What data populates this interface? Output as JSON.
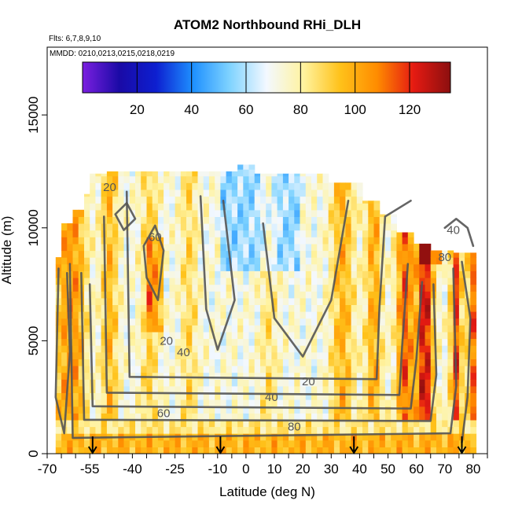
{
  "chart_data": {
    "type": "heatmap",
    "title": "ATOM2 Northbound RHi_DLH",
    "subtitle_lines": [
      "Flts: 6,7,8,9,10",
      "MMDD: 0210,0213,0215,0218,0219"
    ],
    "xlabel": "Latitude (deg N)",
    "ylabel": "Altitude (m)",
    "xlim": [
      -70,
      85
    ],
    "ylim": [
      0,
      18000
    ],
    "x_ticks": [
      {
        "value": -70,
        "label": "-70"
      },
      {
        "value": -55,
        "label": "-55"
      },
      {
        "value": -40,
        "label": "-40"
      },
      {
        "value": -25,
        "label": "-25"
      },
      {
        "value": -10,
        "label": "-10"
      },
      {
        "value": 0,
        "label": "0"
      },
      {
        "value": 10,
        "label": "10"
      },
      {
        "value": 20,
        "label": "20"
      },
      {
        "value": 30,
        "label": "30"
      },
      {
        "value": 40,
        "label": "40"
      },
      {
        "value": 50,
        "label": "50"
      },
      {
        "value": 60,
        "label": "60"
      },
      {
        "value": 70,
        "label": "70"
      },
      {
        "value": 80,
        "label": "80"
      }
    ],
    "y_ticks": [
      {
        "value": 0,
        "label": "0"
      },
      {
        "value": 5000,
        "label": "5000"
      },
      {
        "value": 10000,
        "label": "10000"
      },
      {
        "value": 15000,
        "label": "15000"
      }
    ],
    "colorbar": {
      "range": [
        0,
        135
      ],
      "ticks": [
        20,
        40,
        60,
        80,
        100,
        120
      ],
      "colors": [
        "#7b1fe0",
        "#1a0aa6",
        "#0d1fd0",
        "#1e90ff",
        "#7fd3ff",
        "#f3f8ff",
        "#fff3a0",
        "#ffc21a",
        "#ff8c00",
        "#e51a12",
        "#8b0f0f"
      ]
    },
    "contour_labels": [
      {
        "text": "20",
        "x": -48,
        "y": 11800
      },
      {
        "text": "60",
        "x": -32,
        "y": 9600
      },
      {
        "text": "20",
        "x": -28,
        "y": 5000
      },
      {
        "text": "40",
        "x": -22,
        "y": 4500
      },
      {
        "text": "20",
        "x": 22,
        "y": 3200
      },
      {
        "text": "40",
        "x": 9,
        "y": 2500
      },
      {
        "text": "60",
        "x": -29,
        "y": 1800
      },
      {
        "text": "80",
        "x": 17,
        "y": 1200
      },
      {
        "text": "40",
        "x": 73,
        "y": 9900
      },
      {
        "text": "80",
        "x": 70,
        "y": 8700
      }
    ],
    "flight_markers_lat": [
      -54,
      -9,
      38,
      76
    ]
  }
}
